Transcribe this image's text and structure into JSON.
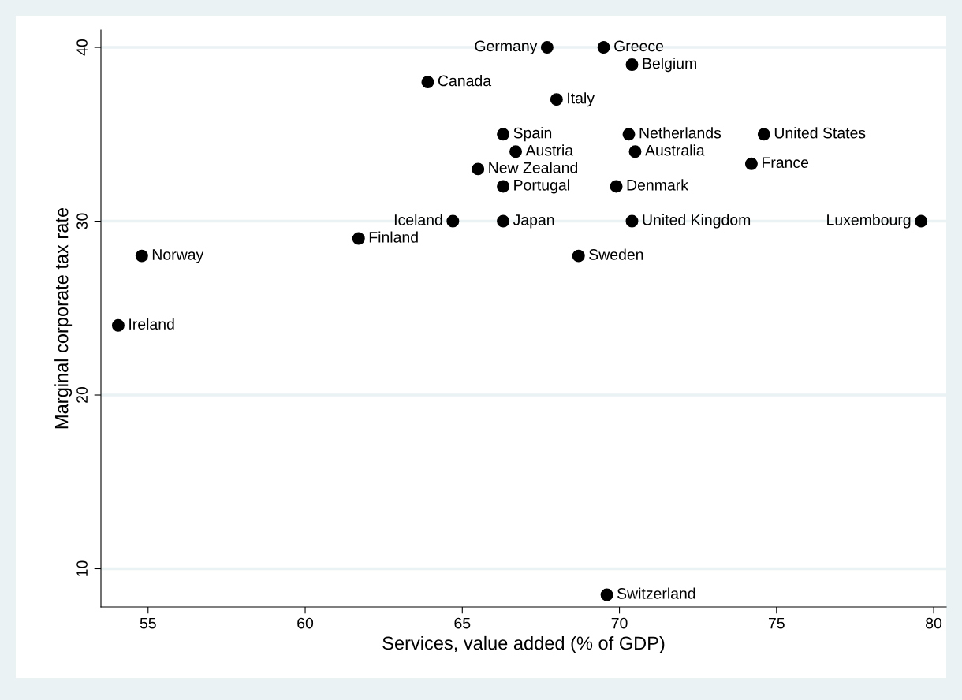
{
  "chart_data": {
    "type": "scatter",
    "xlabel": "Services, value added (% of GDP)",
    "ylabel": "Marginal corporate tax rate",
    "xlim": [
      53.5,
      80.4
    ],
    "ylim": [
      7.8,
      41
    ],
    "xticks": [
      55,
      60,
      65,
      70,
      75,
      80
    ],
    "yticks": [
      10,
      20,
      30,
      40
    ],
    "grid": "y",
    "marker": "circle",
    "series": [
      {
        "color": "#000000",
        "x": [
          67.7,
          69.5,
          70.4,
          63.9,
          68.0,
          66.3,
          70.3,
          74.6,
          66.7,
          70.5,
          74.2,
          65.5,
          66.3,
          69.9,
          64.7,
          66.3,
          70.4,
          79.6,
          61.7,
          54.8,
          68.7,
          54.05,
          69.6
        ],
        "values": [
          40,
          40,
          39,
          38,
          37,
          35,
          35,
          35,
          34,
          34,
          33.3,
          33,
          32,
          32,
          30,
          30,
          30,
          30,
          29,
          28,
          28,
          24,
          8.5
        ]
      }
    ],
    "annotations": [
      {
        "text": "Germany",
        "x": 67.7,
        "y": 40
      },
      {
        "text": "Greece",
        "x": 69.5,
        "y": 40
      },
      {
        "text": "Belgium",
        "x": 70.4,
        "y": 39
      },
      {
        "text": "Canada",
        "x": 63.9,
        "y": 38
      },
      {
        "text": "Italy",
        "x": 68.0,
        "y": 37
      },
      {
        "text": "Spain",
        "x": 66.3,
        "y": 35
      },
      {
        "text": "Netherlands",
        "x": 70.3,
        "y": 35
      },
      {
        "text": "United States",
        "x": 74.6,
        "y": 35
      },
      {
        "text": "Austria",
        "x": 66.7,
        "y": 34
      },
      {
        "text": "Australia",
        "x": 70.5,
        "y": 34
      },
      {
        "text": "France",
        "x": 74.2,
        "y": 33.3
      },
      {
        "text": "New Zealand",
        "x": 65.5,
        "y": 33
      },
      {
        "text": "Portugal",
        "x": 66.3,
        "y": 32
      },
      {
        "text": "Denmark",
        "x": 69.9,
        "y": 32
      },
      {
        "text": "Iceland",
        "x": 64.7,
        "y": 30
      },
      {
        "text": "Japan",
        "x": 66.3,
        "y": 30
      },
      {
        "text": "United Kingdom",
        "x": 70.4,
        "y": 30
      },
      {
        "text": "Luxembourg",
        "x": 79.6,
        "y": 30
      },
      {
        "text": "Finland",
        "x": 61.7,
        "y": 29
      },
      {
        "text": "Norway",
        "x": 54.8,
        "y": 28
      },
      {
        "text": "Sweden",
        "x": 68.7,
        "y": 28
      },
      {
        "text": "Ireland",
        "x": 54.05,
        "y": 24
      },
      {
        "text": "Switzerland",
        "x": 69.6,
        "y": 8.5
      }
    ]
  }
}
